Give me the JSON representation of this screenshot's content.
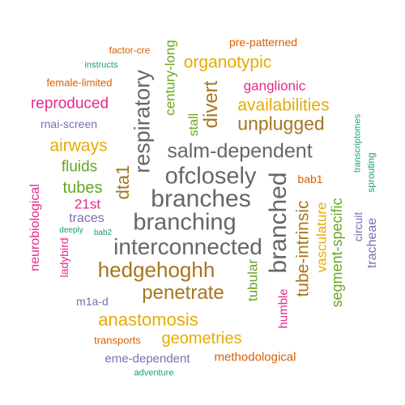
{
  "cloud": {
    "words": [
      {
        "key": "factor_cre",
        "text": "factor-cre",
        "color": "#d95f02"
      },
      {
        "key": "century_long",
        "text": "century-long",
        "color": "#66a61e"
      },
      {
        "key": "pre_patterned",
        "text": "pre-patterned",
        "color": "#d95f02"
      },
      {
        "key": "instructs",
        "text": "instructs",
        "color": "#1b9e77"
      },
      {
        "key": "organotypic",
        "text": "organotypic",
        "color": "#e6ab02"
      },
      {
        "key": "female_limited",
        "text": "female-limited",
        "color": "#d95f02"
      },
      {
        "key": "respiratory",
        "text": "respiratory",
        "color": "#666666"
      },
      {
        "key": "divert",
        "text": "divert",
        "color": "#a6761d"
      },
      {
        "key": "ganglionic",
        "text": "ganglionic",
        "color": "#e7298a"
      },
      {
        "key": "reproduced",
        "text": "reproduced",
        "color": "#e7298a"
      },
      {
        "key": "availabilities",
        "text": "availabilities",
        "color": "#e6ab02"
      },
      {
        "key": "stall",
        "text": "stall",
        "color": "#66a61e"
      },
      {
        "key": "rnai_screen",
        "text": "rnai-screen",
        "color": "#7570b3"
      },
      {
        "key": "unplugged",
        "text": "unplugged",
        "color": "#a6761d"
      },
      {
        "key": "transcriptomes",
        "text": "transcriptomes",
        "color": "#1b9e77"
      },
      {
        "key": "airways",
        "text": "airways",
        "color": "#e6ab02"
      },
      {
        "key": "salm_dependent",
        "text": "salm-dependent",
        "color": "#666666"
      },
      {
        "key": "dta1",
        "text": "dta1",
        "color": "#a6761d"
      },
      {
        "key": "fluids",
        "text": "fluids",
        "color": "#66a61e"
      },
      {
        "key": "ofclosely",
        "text": "ofclosely",
        "color": "#666666"
      },
      {
        "key": "sprouting",
        "text": "sprouting",
        "color": "#1b9e77"
      },
      {
        "key": "bab1",
        "text": "bab1",
        "color": "#d95f02"
      },
      {
        "key": "tubes",
        "text": "tubes",
        "color": "#66a61e"
      },
      {
        "key": "neurobiological",
        "text": "neurobiological",
        "color": "#e7298a"
      },
      {
        "key": "branched",
        "text": "branched",
        "color": "#666666"
      },
      {
        "key": "branches",
        "text": "branches",
        "color": "#666666"
      },
      {
        "key": "21st",
        "text": "21st",
        "color": "#e7298a"
      },
      {
        "key": "traces",
        "text": "traces",
        "color": "#7570b3"
      },
      {
        "key": "branching",
        "text": "branching",
        "color": "#666666"
      },
      {
        "key": "vasculature",
        "text": "vasculature",
        "color": "#e6ab02"
      },
      {
        "key": "circuit",
        "text": "circuit",
        "color": "#7570b3"
      },
      {
        "key": "tracheae",
        "text": "tracheae",
        "color": "#7570b3"
      },
      {
        "key": "deeply",
        "text": "deeply",
        "color": "#1b9e77"
      },
      {
        "key": "bab2",
        "text": "bab2",
        "color": "#1b9e77"
      },
      {
        "key": "tube_intrinsic",
        "text": "tube-intrinsic",
        "color": "#a6761d"
      },
      {
        "key": "segment_specific",
        "text": "segment-specific",
        "color": "#66a61e"
      },
      {
        "key": "ladybird",
        "text": "ladybird",
        "color": "#e7298a"
      },
      {
        "key": "interconnected",
        "text": "interconnected",
        "color": "#666666"
      },
      {
        "key": "hedgehoghh",
        "text": "hedgehoghh",
        "color": "#a6761d"
      },
      {
        "key": "tubular",
        "text": "tubular",
        "color": "#66a61e"
      },
      {
        "key": "m1a_d",
        "text": "m1a-d",
        "color": "#7570b3"
      },
      {
        "key": "penetrate",
        "text": "penetrate",
        "color": "#a6761d"
      },
      {
        "key": "humble",
        "text": "humble",
        "color": "#e7298a"
      },
      {
        "key": "anastomosis",
        "text": "anastomosis",
        "color": "#e6ab02"
      },
      {
        "key": "transports",
        "text": "transports",
        "color": "#d95f02"
      },
      {
        "key": "geometries",
        "text": "geometries",
        "color": "#e6ab02"
      },
      {
        "key": "eme_dependent",
        "text": "eme-dependent",
        "color": "#7570b3"
      },
      {
        "key": "methodological",
        "text": "methodological",
        "color": "#d95f02"
      },
      {
        "key": "adventure",
        "text": "adventure",
        "color": "#1b9e77"
      }
    ]
  }
}
